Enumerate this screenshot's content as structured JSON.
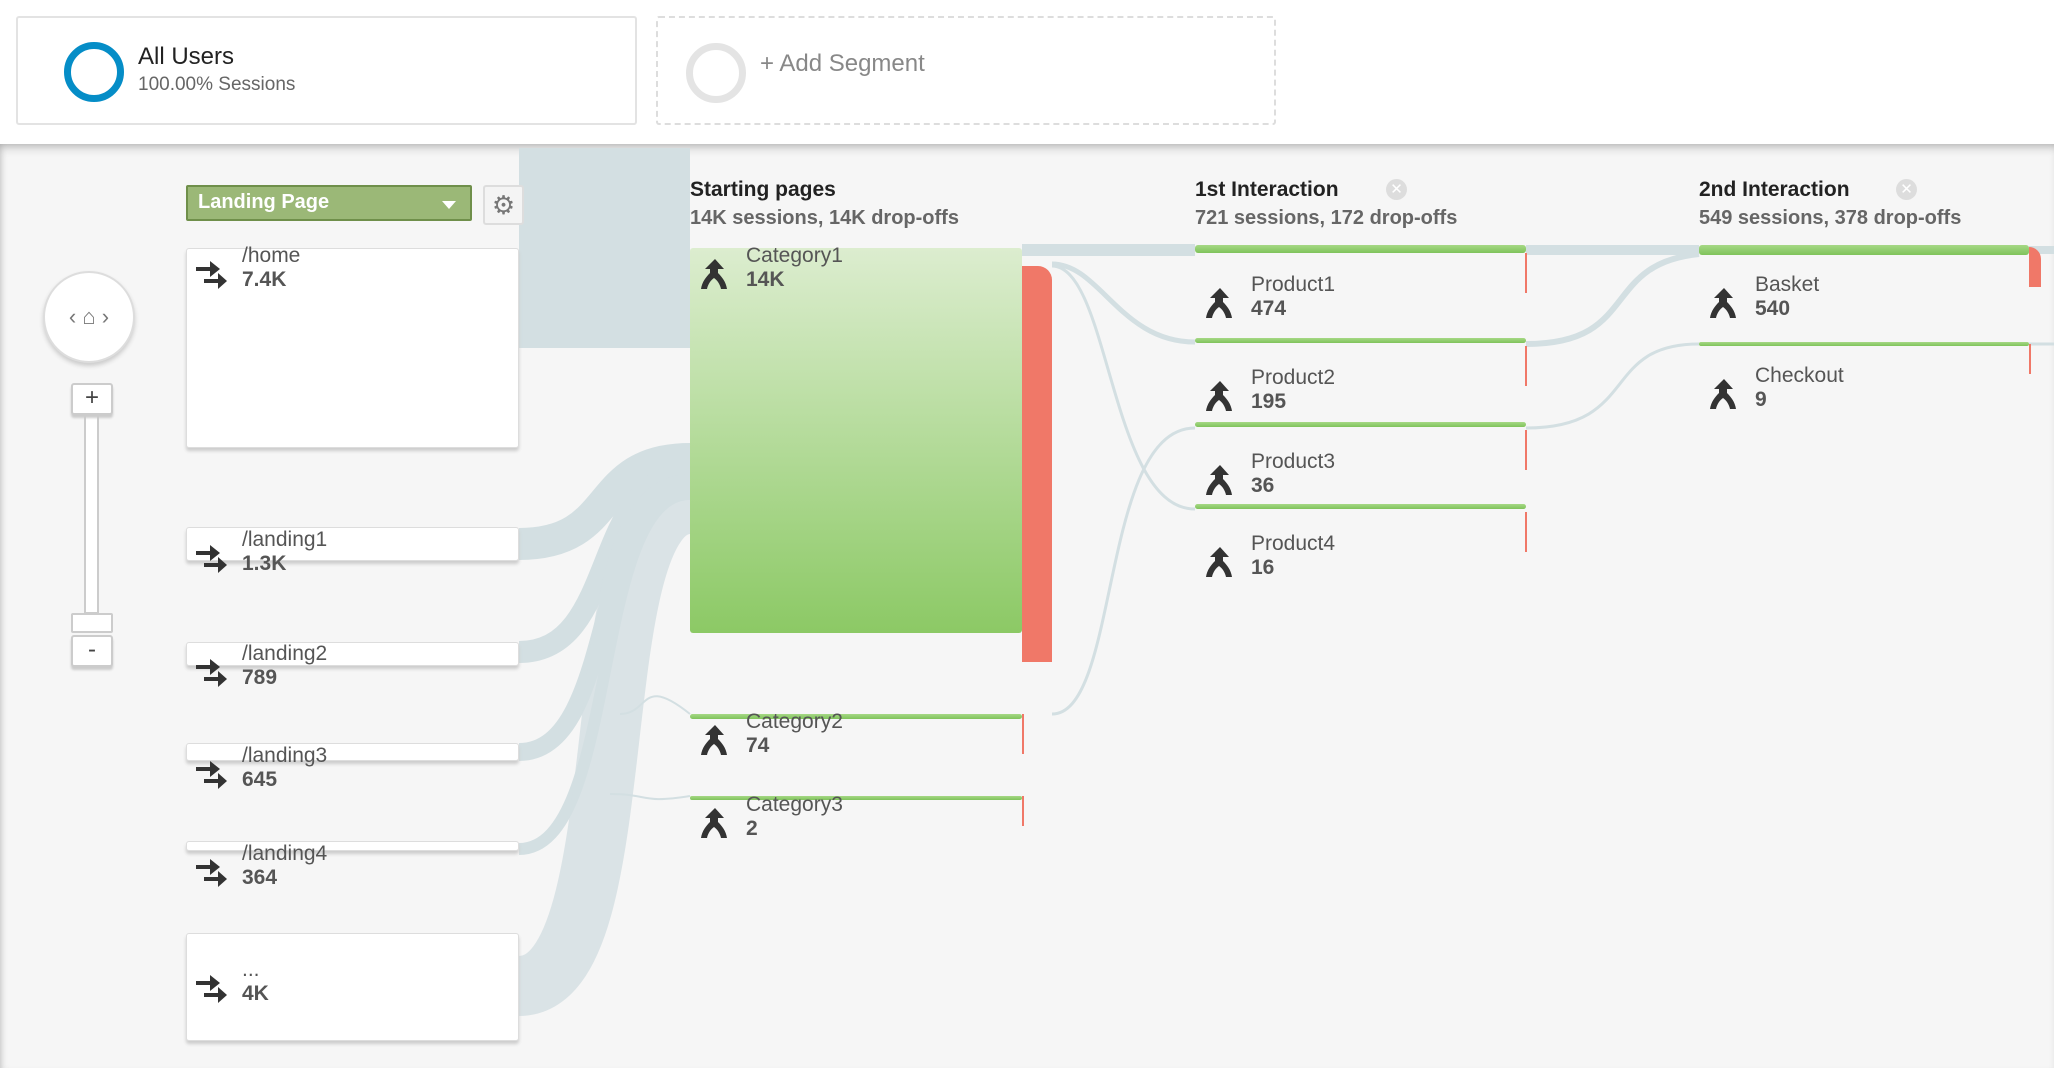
{
  "segments": {
    "primary": {
      "title": "All Users",
      "subtitle": "100.00% Sessions",
      "color": "#058dc7"
    },
    "add": {
      "label": "+ Add Segment"
    }
  },
  "toolbar": {
    "dimension": "Landing Page",
    "gear_icon": "gear-icon"
  },
  "columns": [
    {
      "title": "Starting pages",
      "stats": "14K sessions, 14K drop-offs"
    },
    {
      "title": "1st Interaction",
      "stats": "721 sessions, 172 drop-offs"
    },
    {
      "title": "2nd Interaction",
      "stats": "549 sessions, 378 drop-offs"
    }
  ],
  "landing_nodes": [
    {
      "label": "/home",
      "value": "7.4K"
    },
    {
      "label": "/landing1",
      "value": "1.3K"
    },
    {
      "label": "/landing2",
      "value": "789"
    },
    {
      "label": "/landing3",
      "value": "645"
    },
    {
      "label": "/landing4",
      "value": "364"
    },
    {
      "label": "...",
      "value": "4K"
    }
  ],
  "starting_nodes": [
    {
      "label": "Category1",
      "value": "14K"
    },
    {
      "label": "Category2",
      "value": "74"
    },
    {
      "label": "Category3",
      "value": "2"
    }
  ],
  "interaction1_nodes": [
    {
      "label": "Product1",
      "value": "474"
    },
    {
      "label": "Product2",
      "value": "195"
    },
    {
      "label": "Product3",
      "value": "36"
    },
    {
      "label": "Product4",
      "value": "16"
    }
  ],
  "interaction2_nodes": [
    {
      "label": "Basket",
      "value": "540"
    },
    {
      "label": "Checkout",
      "value": "9"
    }
  ],
  "zoom": {
    "plus": "+",
    "minus": "-"
  },
  "colors": {
    "node_green": "#8cc965",
    "dropoff_red": "#f07868",
    "flow": "#d3dfe2",
    "dimension": "#9bb877"
  }
}
